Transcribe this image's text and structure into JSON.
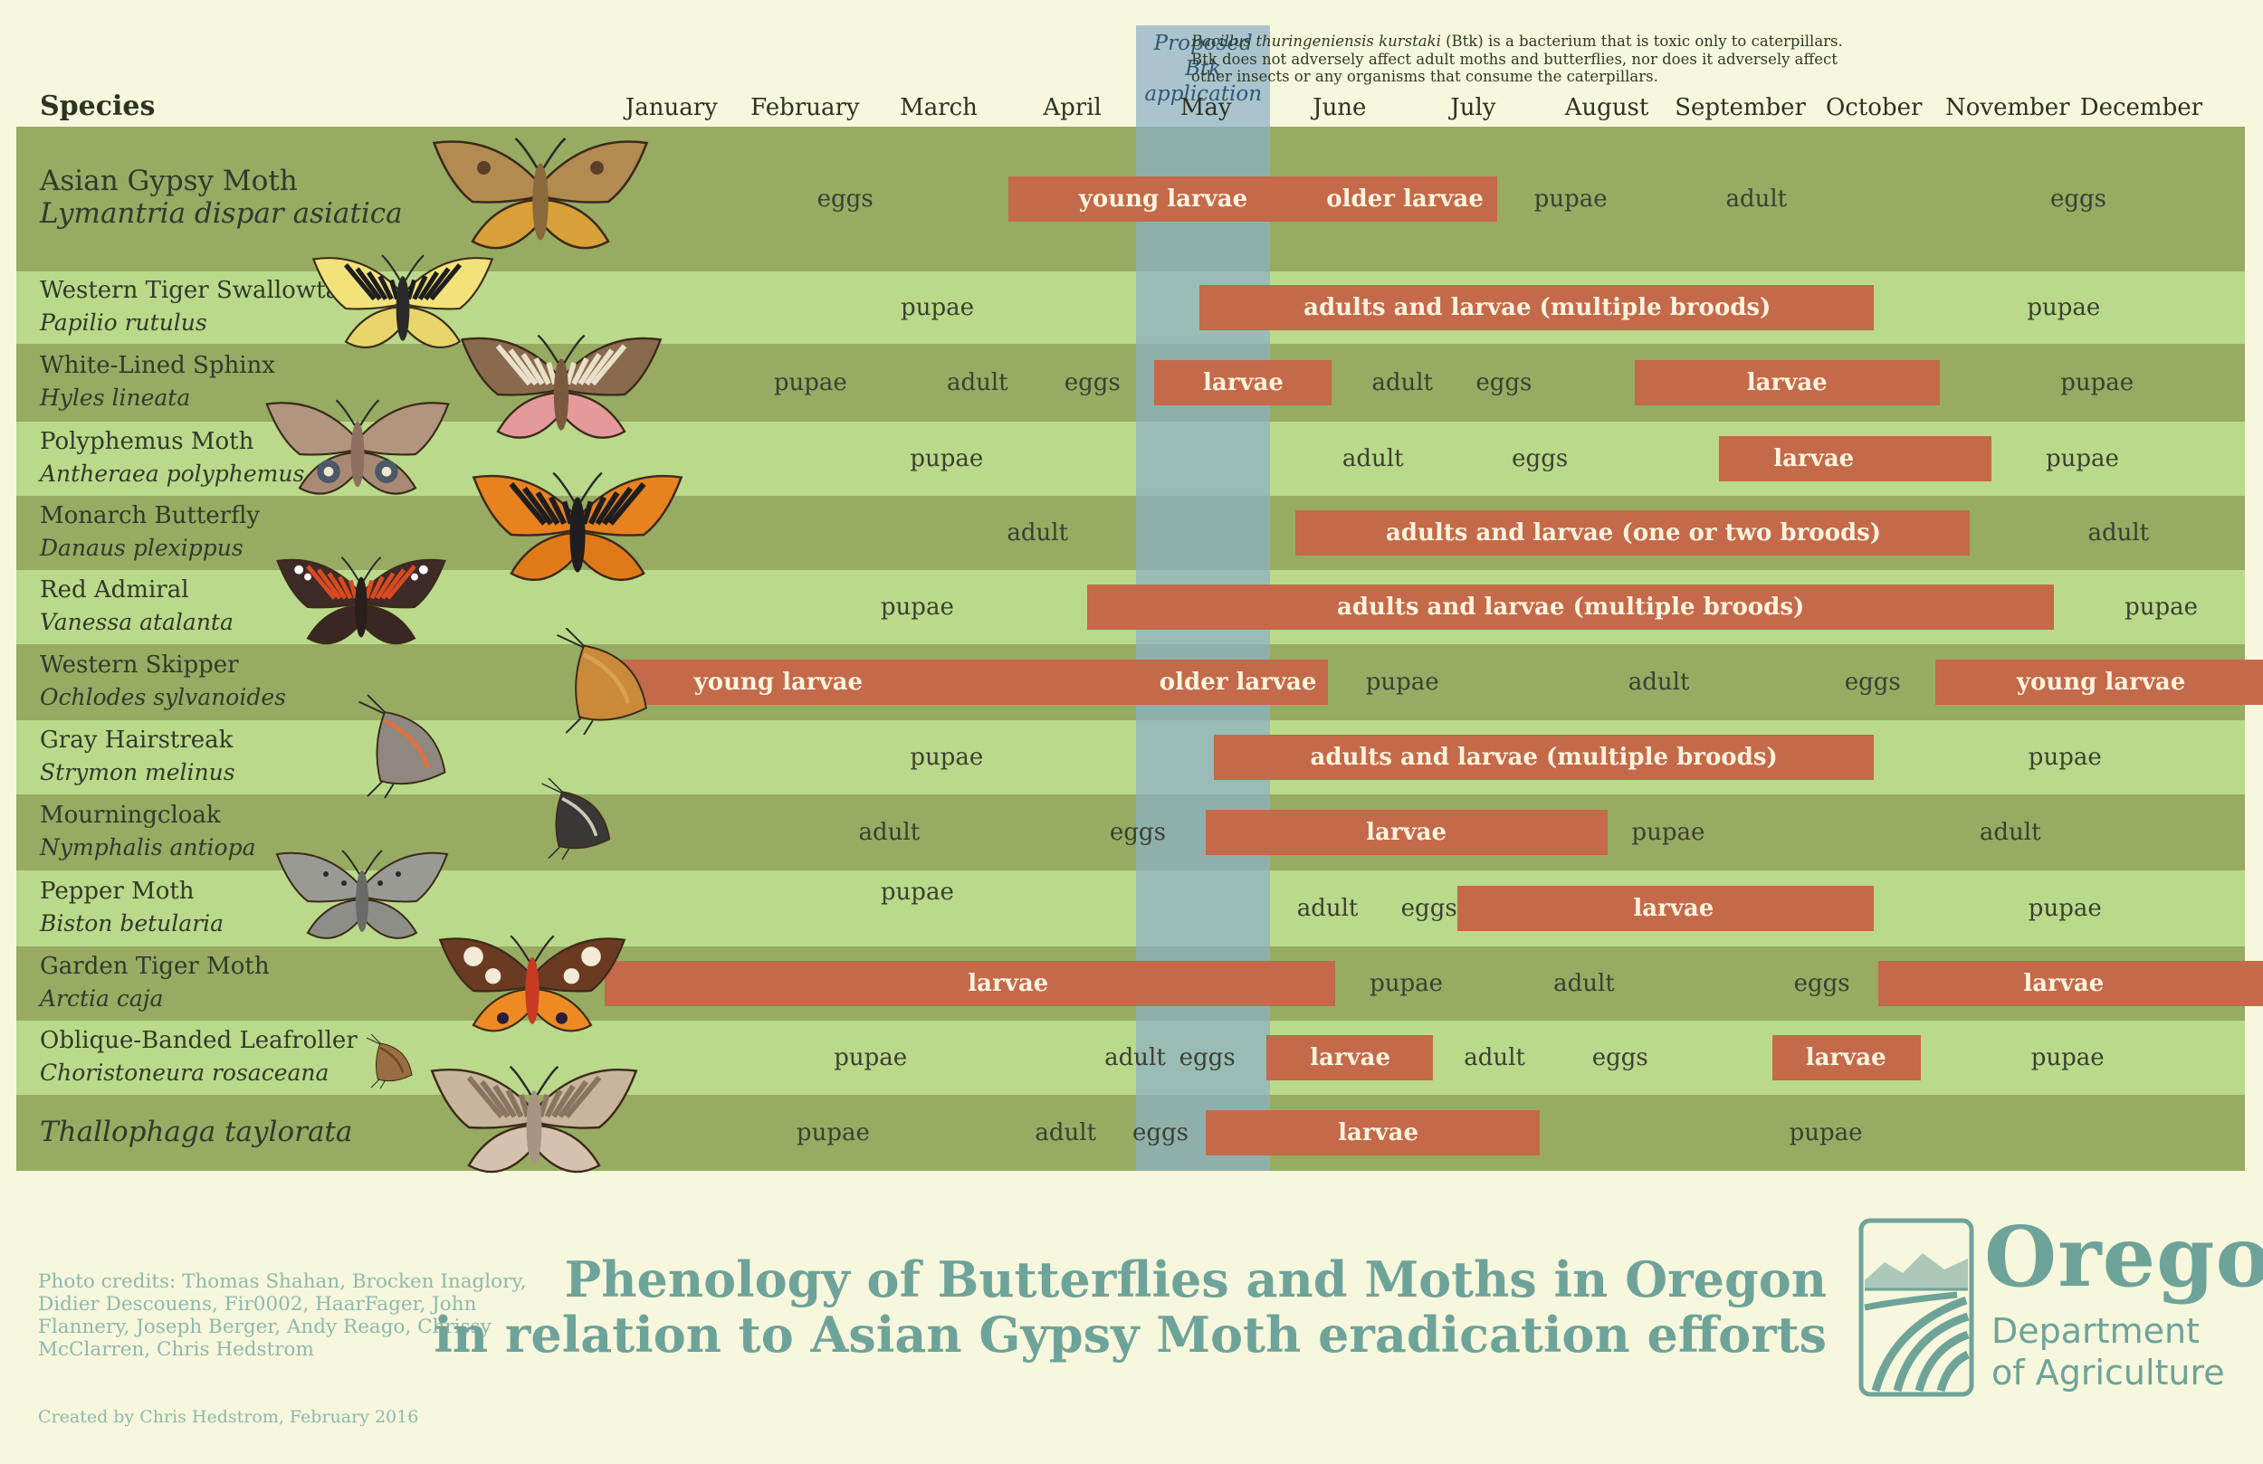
{
  "header": {
    "species_label": "Species",
    "btk_label": "Proposed Btk application",
    "btk_note_lead": "Bacillus thuringeniensis kurstaki",
    "btk_note_rest": " (Btk) is a bacterium that is toxic only to caterpillars. Btk does not adversely affect adult moths and butterflies, nor does it adversely affect other insects or any organisms that consume the caterpillars."
  },
  "footer": {
    "credits": "Photo credits: Thomas Shahan, Brocken Inaglory, Didier Descouens, Fir0002, HaarFager, John Flannery, Joseph Berger, Andy Reago, Chrissy McClarren, Chris Hedstrom",
    "created": "Created by Chris Hedstrom, February 2016",
    "title_line1": "Phenology of Butterflies and Moths in Oregon",
    "title_line2": "in relation to Asian Gypsy Moth eradication efforts",
    "logo_title": "Oregon",
    "logo_line1": "Department",
    "logo_line2": "of Agriculture"
  },
  "chart_data": {
    "type": "table",
    "months": [
      "January",
      "February",
      "March",
      "April",
      "May",
      "June",
      "July",
      "August",
      "September",
      "October",
      "November",
      "December"
    ],
    "btk_window": {
      "start": 4.0,
      "end": 5.0
    },
    "colors": {
      "dark_band": "#97ab63",
      "light_band": "#bad98a",
      "bar": "#c4694a",
      "btk": "#8cb0c8",
      "title": "#6ea39a"
    },
    "rows": [
      {
        "common": "Asian Gypsy Moth",
        "scientific": "Lymantria dispar asiatica",
        "insect": "asian-gypsy-moth",
        "bars": [
          {
            "start": 3.02,
            "end": 6.68
          }
        ],
        "labels": [
          {
            "t": "eggs",
            "at": 1.8
          },
          {
            "t": "young larvae",
            "at": 4.18,
            "on": true
          },
          {
            "t": "older larvae",
            "at": 5.99,
            "on": true
          },
          {
            "t": "pupae",
            "at": 7.23
          },
          {
            "t": "adult",
            "at": 8.62
          },
          {
            "t": "eggs",
            "at": 11.03
          }
        ]
      },
      {
        "common": "Western Tiger Swallowtail",
        "scientific": "Papilio rutulus",
        "insect": "western-tiger-swallowtail",
        "bars": [
          {
            "start": 4.45,
            "end": 9.5
          }
        ],
        "labels": [
          {
            "t": "pupae",
            "at": 2.49
          },
          {
            "t": "adults and larvae (multiple broods)",
            "at": 6.98,
            "on": true
          },
          {
            "t": "pupae",
            "at": 10.92
          }
        ]
      },
      {
        "common": "White-Lined Sphinx",
        "scientific": "Hyles lineata",
        "insect": "white-lined-sphinx",
        "bars": [
          {
            "start": 4.11,
            "end": 5.44
          },
          {
            "start": 7.71,
            "end": 9.99
          }
        ],
        "labels": [
          {
            "t": "pupae",
            "at": 1.54
          },
          {
            "t": "adult",
            "at": 2.79
          },
          {
            "t": "eggs",
            "at": 3.65
          },
          {
            "t": "larvae",
            "at": 4.78,
            "on": true
          },
          {
            "t": "adult",
            "at": 5.97
          },
          {
            "t": "eggs",
            "at": 6.73
          },
          {
            "t": "larvae",
            "at": 8.85,
            "on": true
          },
          {
            "t": "pupae",
            "at": 11.17
          }
        ]
      },
      {
        "common": "Polyphemus Moth",
        "scientific": "Antheraea polyphemus",
        "insect": "polyphemus-moth",
        "bars": [
          {
            "start": 8.34,
            "end": 10.38
          }
        ],
        "labels": [
          {
            "t": "pupae",
            "at": 2.56
          },
          {
            "t": "adult",
            "at": 5.75
          },
          {
            "t": "eggs",
            "at": 7.0
          },
          {
            "t": "larvae",
            "at": 9.05,
            "on": true
          },
          {
            "t": "pupae",
            "at": 11.06
          }
        ]
      },
      {
        "common": "Monarch Butterfly",
        "scientific": "Danaus plexippus",
        "insect": "monarch-butterfly",
        "bars": [
          {
            "start": 5.17,
            "end": 10.22
          }
        ],
        "labels": [
          {
            "t": "adult",
            "at": 3.24
          },
          {
            "t": "adults and larvae (one or two broods)",
            "at": 7.7,
            "on": true
          },
          {
            "t": "adult",
            "at": 11.33
          }
        ]
      },
      {
        "common": "Red Admiral",
        "scientific": "Vanessa atalanta",
        "insect": "red-admiral",
        "bars": [
          {
            "start": 3.61,
            "end": 10.85
          }
        ],
        "labels": [
          {
            "t": "pupae",
            "at": 2.34
          },
          {
            "t": "adults and larvae (multiple broods)",
            "at": 7.23,
            "on": true
          },
          {
            "t": "pupae",
            "at": 11.65
          }
        ]
      },
      {
        "common": "Western Skipper",
        "scientific": "Ochlodes sylvanoides",
        "insect": "western-skipper",
        "bars": [
          {
            "start": 0.0,
            "end": 5.41
          },
          {
            "start": 9.96,
            "end": 12.43
          }
        ],
        "labels": [
          {
            "t": "young larvae",
            "at": 1.3,
            "on": true
          },
          {
            "t": "older larvae",
            "at": 4.74,
            "on": true
          },
          {
            "t": "pupae",
            "at": 5.97
          },
          {
            "t": "adult",
            "at": 7.89
          },
          {
            "t": "eggs",
            "at": 9.49
          },
          {
            "t": "young larvae",
            "at": 11.2,
            "on": true
          }
        ]
      },
      {
        "common": "Gray Hairstreak",
        "scientific": "Strymon melinus",
        "insect": "gray-hairstreak",
        "bars": [
          {
            "start": 4.56,
            "end": 9.5
          }
        ],
        "labels": [
          {
            "t": "pupae",
            "at": 2.56
          },
          {
            "t": "adults and larvae (multiple broods)",
            "at": 7.03,
            "on": true
          },
          {
            "t": "pupae",
            "at": 10.93
          }
        ]
      },
      {
        "common": "Mourningcloak",
        "scientific": "Nymphalis antiopa",
        "insect": "mourningcloak",
        "bars": [
          {
            "start": 4.5,
            "end": 7.51
          }
        ],
        "labels": [
          {
            "t": "adult",
            "at": 2.13
          },
          {
            "t": "eggs",
            "at": 3.99
          },
          {
            "t": "larvae",
            "at": 6.0,
            "on": true
          },
          {
            "t": "pupae",
            "at": 7.96
          },
          {
            "t": "adult",
            "at": 10.52
          }
        ]
      },
      {
        "common": "Pepper Moth",
        "scientific": "Biston betularia",
        "insect": "pepper-moth",
        "bars": [
          {
            "start": 6.38,
            "end": 9.5
          }
        ],
        "labels": [
          {
            "t": "pupae",
            "at": 2.34
          },
          {
            "t": "adult",
            "at": 5.41
          },
          {
            "t": "eggs",
            "at": 6.17
          },
          {
            "t": "larvae",
            "at": 8.0,
            "on": true
          },
          {
            "t": "pupae",
            "at": 10.93
          }
        ]
      },
      {
        "common": "Garden Tiger Moth",
        "scientific": "Arctia caja",
        "insect": "garden-tiger-moth",
        "bars": [
          {
            "start": 0.0,
            "end": 5.47
          },
          {
            "start": 9.53,
            "end": 12.44
          }
        ],
        "labels": [
          {
            "t": "larvae",
            "at": 3.02,
            "on": true
          },
          {
            "t": "pupae",
            "at": 6.0
          },
          {
            "t": "adult",
            "at": 7.33
          },
          {
            "t": "eggs",
            "at": 9.11
          },
          {
            "t": "larvae",
            "at": 10.92,
            "on": true
          }
        ]
      },
      {
        "common": "Oblique-Banded Leafroller",
        "scientific": "Choristoneura rosaceana",
        "insect": "oblique-banded-leafroller",
        "bars": [
          {
            "start": 4.95,
            "end": 6.2
          },
          {
            "start": 8.74,
            "end": 9.85
          }
        ],
        "labels": [
          {
            "t": "pupae",
            "at": 1.99
          },
          {
            "t": "adult",
            "at": 3.97
          },
          {
            "t": "eggs",
            "at": 4.51
          },
          {
            "t": "larvae",
            "at": 5.58,
            "on": true
          },
          {
            "t": "adult",
            "at": 6.66
          },
          {
            "t": "eggs",
            "at": 7.6
          },
          {
            "t": "larvae",
            "at": 9.29,
            "on": true
          },
          {
            "t": "pupae",
            "at": 10.95
          }
        ]
      },
      {
        "common": "",
        "scientific": "Thallophaga taylorata",
        "insect": "thallophaga-taylorata",
        "bars": [
          {
            "start": 4.5,
            "end": 7.0
          }
        ],
        "labels": [
          {
            "t": "pupae",
            "at": 1.71
          },
          {
            "t": "adult",
            "at": 3.45
          },
          {
            "t": "eggs",
            "at": 4.16
          },
          {
            "t": "larvae",
            "at": 5.79,
            "on": true
          },
          {
            "t": "pupae",
            "at": 9.14
          }
        ]
      }
    ]
  }
}
